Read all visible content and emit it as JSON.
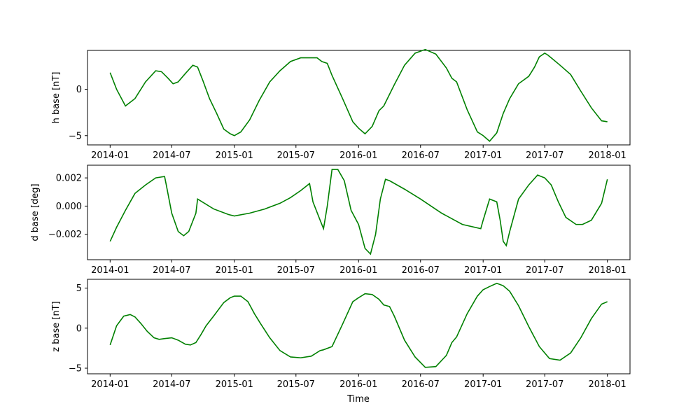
{
  "chart_data": [
    {
      "type": "line",
      "ylabel": "h base [nT]",
      "xlabel": "",
      "ylim": [
        -6.0,
        4.2
      ],
      "yticks": [
        -5,
        0
      ],
      "color": "#008000",
      "x": [
        "2014-01-01",
        "2014-01-20",
        "2014-02-15",
        "2014-03-15",
        "2014-04-15",
        "2014-05-15",
        "2014-06-01",
        "2014-06-20",
        "2014-07-05",
        "2014-07-20",
        "2014-08-10",
        "2014-09-01",
        "2014-09-15",
        "2014-10-01",
        "2014-10-10",
        "2014-10-20",
        "2014-11-10",
        "2014-12-01",
        "2014-12-20",
        "2015-01-01",
        "2015-01-20",
        "2015-02-15",
        "2015-03-15",
        "2015-04-15",
        "2015-05-15",
        "2015-06-15",
        "2015-07-15",
        "2015-08-15",
        "2015-09-01",
        "2015-09-15",
        "2015-10-01",
        "2015-10-15",
        "2015-11-15",
        "2015-12-15",
        "2016-01-01",
        "2016-01-20",
        "2016-02-10",
        "2016-03-01",
        "2016-03-15",
        "2016-04-15",
        "2016-05-15",
        "2016-06-15",
        "2016-07-15",
        "2016-08-15",
        "2016-09-15",
        "2016-10-01",
        "2016-10-15",
        "2016-11-15",
        "2016-12-15",
        "2017-01-01",
        "2017-01-20",
        "2017-02-10",
        "2017-03-01",
        "2017-03-20",
        "2017-04-15",
        "2017-05-15",
        "2017-06-01",
        "2017-06-15",
        "2017-07-01",
        "2017-07-10",
        "2017-07-20",
        "2017-08-15",
        "2017-09-15",
        "2017-10-15",
        "2017-11-15",
        "2017-12-15",
        "2018-01-01"
      ],
      "values": [
        1.8,
        0.0,
        -1.8,
        -1.0,
        0.8,
        2.0,
        1.9,
        1.2,
        0.6,
        0.8,
        1.7,
        2.6,
        2.4,
        0.9,
        0.0,
        -1.0,
        -2.6,
        -4.3,
        -4.8,
        -5.0,
        -4.6,
        -3.3,
        -1.2,
        0.8,
        2.0,
        3.0,
        3.4,
        3.4,
        3.4,
        3.0,
        2.8,
        1.5,
        -1.0,
        -3.5,
        -4.2,
        -4.8,
        -4.0,
        -2.3,
        -1.8,
        0.5,
        2.6,
        3.9,
        4.3,
        3.8,
        2.3,
        1.2,
        0.8,
        -2.2,
        -4.6,
        -5.0,
        -5.6,
        -4.7,
        -2.6,
        -1.0,
        0.6,
        1.4,
        2.4,
        3.5,
        3.9,
        3.7,
        3.4,
        2.6,
        1.6,
        -0.2,
        -2.0,
        -3.4,
        -3.5
      ]
    },
    {
      "type": "line",
      "ylabel": "d base [deg]",
      "xlabel": "",
      "ylim": [
        -0.0038,
        0.0029
      ],
      "yticks": [
        -0.002,
        0.0,
        0.002
      ],
      "ytick_labels": [
        "−0.002",
        "0.000",
        "0.002"
      ],
      "color": "#008000",
      "x": [
        "2014-01-01",
        "2014-01-20",
        "2014-02-15",
        "2014-03-15",
        "2014-04-15",
        "2014-05-15",
        "2014-06-10",
        "2014-06-15",
        "2014-07-01",
        "2014-07-20",
        "2014-08-05",
        "2014-08-20",
        "2014-09-10",
        "2014-09-15",
        "2014-11-01",
        "2014-12-15",
        "2015-01-01",
        "2015-02-15",
        "2015-04-01",
        "2015-05-15",
        "2015-06-15",
        "2015-07-15",
        "2015-08-10",
        "2015-08-20",
        "2015-09-10",
        "2015-09-20",
        "2015-10-01",
        "2015-10-15",
        "2015-11-01",
        "2015-11-20",
        "2015-12-10",
        "2016-01-01",
        "2016-01-20",
        "2016-02-05",
        "2016-02-20",
        "2016-03-05",
        "2016-03-20",
        "2016-04-01",
        "2016-05-15",
        "2016-07-01",
        "2016-09-01",
        "2016-11-01",
        "2016-12-25",
        "2017-01-01",
        "2017-01-20",
        "2017-02-10",
        "2017-02-20",
        "2017-03-01",
        "2017-03-10",
        "2017-03-20",
        "2017-04-15",
        "2017-05-15",
        "2017-06-10",
        "2017-07-01",
        "2017-07-20",
        "2017-08-10",
        "2017-09-01",
        "2017-10-01",
        "2017-10-20",
        "2017-11-15",
        "2017-12-15",
        "2018-01-01"
      ],
      "values": [
        -0.0025,
        -0.0015,
        -0.0003,
        0.0009,
        0.0015,
        0.002,
        0.0021,
        0.0015,
        -0.0005,
        -0.0018,
        -0.0021,
        -0.0018,
        -0.0005,
        0.0005,
        -0.0002,
        -0.0006,
        -0.0007,
        -0.0005,
        -0.0002,
        0.0002,
        0.0006,
        0.0011,
        0.0016,
        0.0003,
        -0.001,
        -0.0016,
        0.0,
        0.0026,
        0.0026,
        0.0018,
        -0.0003,
        -0.0013,
        -0.003,
        -0.0034,
        -0.002,
        0.0005,
        0.0019,
        0.0018,
        0.0012,
        0.0005,
        -0.0005,
        -0.0013,
        -0.0016,
        -0.001,
        0.0005,
        0.0003,
        -0.001,
        -0.0025,
        -0.0028,
        -0.0018,
        0.0005,
        0.0015,
        0.0022,
        0.002,
        0.0015,
        0.0003,
        -0.0008,
        -0.0013,
        -0.0013,
        -0.001,
        0.0002,
        0.0019
      ]
    },
    {
      "type": "line",
      "ylabel": "z base [nT]",
      "xlabel": "Time",
      "ylim": [
        -5.7,
        6.1
      ],
      "yticks": [
        -5,
        0,
        5
      ],
      "color": "#008000",
      "x": [
        "2014-01-01",
        "2014-01-20",
        "2014-02-10",
        "2014-03-01",
        "2014-03-15",
        "2014-04-01",
        "2014-04-20",
        "2014-05-10",
        "2014-05-25",
        "2014-06-10",
        "2014-07-01",
        "2014-07-20",
        "2014-08-10",
        "2014-08-25",
        "2014-09-10",
        "2014-09-25",
        "2014-10-10",
        "2014-11-01",
        "2014-12-01",
        "2014-12-20",
        "2015-01-01",
        "2015-01-20",
        "2015-02-10",
        "2015-03-01",
        "2015-03-20",
        "2015-04-15",
        "2015-05-15",
        "2015-06-15",
        "2015-07-15",
        "2015-08-15",
        "2015-09-10",
        "2015-09-20",
        "2015-10-15",
        "2015-11-15",
        "2015-12-15",
        "2016-01-01",
        "2016-01-20",
        "2016-02-10",
        "2016-03-01",
        "2016-03-15",
        "2016-04-01",
        "2016-04-15",
        "2016-05-15",
        "2016-06-15",
        "2016-07-15",
        "2016-08-15",
        "2016-09-15",
        "2016-10-01",
        "2016-10-15",
        "2016-11-15",
        "2016-12-15",
        "2017-01-01",
        "2017-01-20",
        "2017-02-10",
        "2017-03-01",
        "2017-03-20",
        "2017-04-15",
        "2017-05-15",
        "2017-06-15",
        "2017-07-15",
        "2017-08-15",
        "2017-09-15",
        "2017-10-15",
        "2017-11-15",
        "2017-12-15",
        "2018-01-01"
      ],
      "values": [
        -2.1,
        0.3,
        1.5,
        1.7,
        1.4,
        0.6,
        -0.4,
        -1.2,
        -1.4,
        -1.3,
        -1.2,
        -1.5,
        -2.0,
        -2.1,
        -1.8,
        -0.8,
        0.3,
        1.5,
        3.2,
        3.8,
        4.0,
        4.0,
        3.3,
        1.8,
        0.5,
        -1.2,
        -2.8,
        -3.6,
        -3.7,
        -3.5,
        -2.8,
        -2.7,
        -2.3,
        0.5,
        3.3,
        3.8,
        4.3,
        4.2,
        3.6,
        2.9,
        2.7,
        1.5,
        -1.5,
        -3.6,
        -4.9,
        -4.8,
        -3.4,
        -1.8,
        -1.1,
        1.8,
        4.0,
        4.8,
        5.2,
        5.6,
        5.3,
        4.6,
        2.8,
        0.2,
        -2.3,
        -3.8,
        -4.0,
        -3.1,
        -1.2,
        1.2,
        3.0,
        3.3
      ]
    }
  ],
  "x_tick_labels": [
    "2014-01",
    "2014-07",
    "2015-01",
    "2015-07",
    "2016-01",
    "2016-07",
    "2017-01",
    "2017-07",
    "2018-01"
  ]
}
